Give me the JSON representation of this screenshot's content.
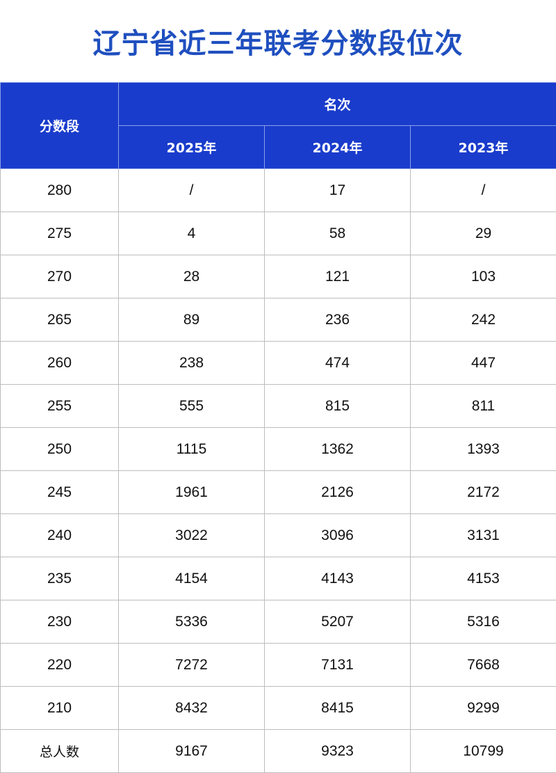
{
  "title": "辽宁省近三年联考分数段位次",
  "header": {
    "score_col": "分数段",
    "rank_group": "名次",
    "years": [
      "2025年",
      "2024年",
      "2023年"
    ]
  },
  "colors": {
    "header_bg": "#1a3ccc",
    "title": "#1f4fbf"
  },
  "rows": [
    {
      "score": "280",
      "values": [
        "/",
        "17",
        "/"
      ]
    },
    {
      "score": "275",
      "values": [
        "4",
        "58",
        "29"
      ]
    },
    {
      "score": "270",
      "values": [
        "28",
        "121",
        "103"
      ]
    },
    {
      "score": "265",
      "values": [
        "89",
        "236",
        "242"
      ]
    },
    {
      "score": "260",
      "values": [
        "238",
        "474",
        "447"
      ]
    },
    {
      "score": "255",
      "values": [
        "555",
        "815",
        "811"
      ]
    },
    {
      "score": "250",
      "values": [
        "1115",
        "1362",
        "1393"
      ]
    },
    {
      "score": "245",
      "values": [
        "1961",
        "2126",
        "2172"
      ]
    },
    {
      "score": "240",
      "values": [
        "3022",
        "3096",
        "3131"
      ]
    },
    {
      "score": "235",
      "values": [
        "4154",
        "4143",
        "4153"
      ]
    },
    {
      "score": "230",
      "values": [
        "5336",
        "5207",
        "5316"
      ]
    },
    {
      "score": "220",
      "values": [
        "7272",
        "7131",
        "7668"
      ]
    },
    {
      "score": "210",
      "values": [
        "8432",
        "8415",
        "9299"
      ]
    },
    {
      "score": "总人数",
      "values": [
        "9167",
        "9323",
        "10799"
      ]
    }
  ]
}
